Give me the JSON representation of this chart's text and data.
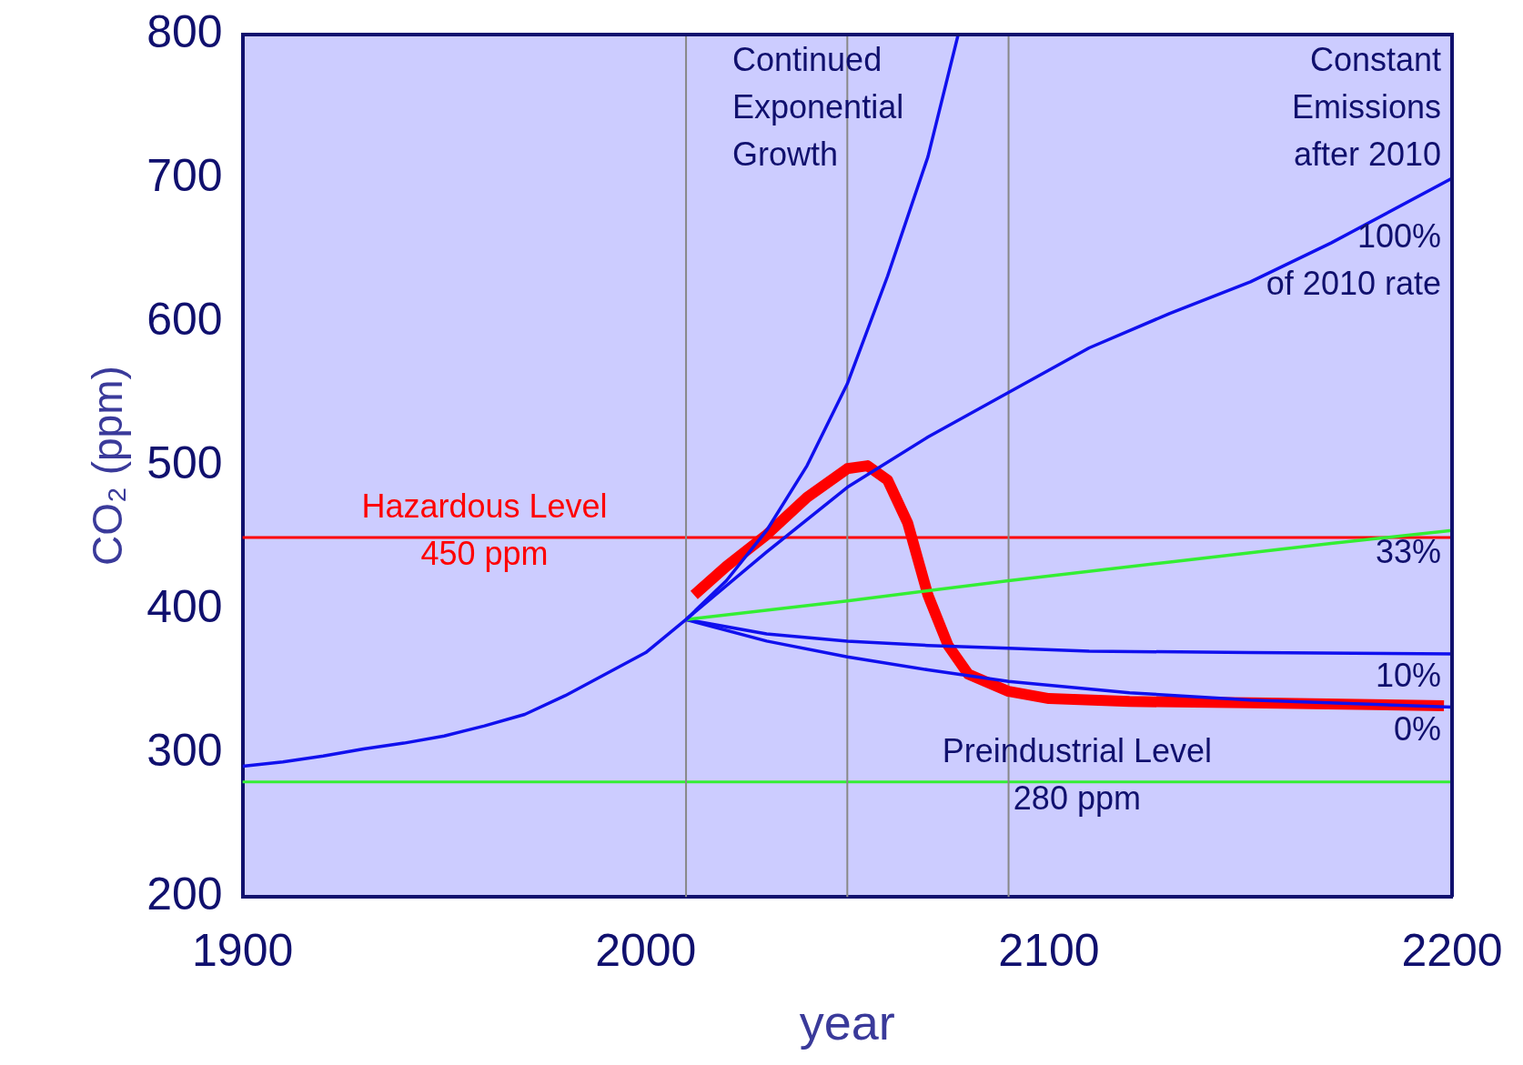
{
  "chart_data": {
    "type": "line",
    "xlabel": "year",
    "ylabel": "CO₂ (ppm)",
    "xlim": [
      1900,
      2200
    ],
    "xticks": [
      1900,
      2000,
      2100,
      2200
    ],
    "ylim": [
      200,
      800
    ],
    "yticks": [
      200,
      300,
      400,
      500,
      600,
      700,
      800
    ],
    "grid": false,
    "legend": false,
    "marker": "none",
    "line_style": "solid",
    "series": [
      {
        "name": "Continued\nExponential\nGrowth",
        "color": "#1010ee",
        "x": [
          1900,
          1910,
          1920,
          1930,
          1940,
          1950,
          1960,
          1970,
          1980,
          1990,
          2000,
          2010,
          2020,
          2030,
          2040,
          2050,
          2060,
          2070,
          2077.5
        ],
        "values": [
          291,
          294,
          298,
          303,
          307,
          312,
          319,
          327,
          340,
          355,
          370,
          393,
          420,
          455,
          500,
          557,
          632,
          715,
          800
        ]
      },
      {
        "name": "100%\nof 2010 rate",
        "color": "#1010ee",
        "x": [
          2010,
          2030,
          2050,
          2070,
          2090,
          2110,
          2130,
          2150,
          2170,
          2200
        ],
        "values": [
          393,
          440,
          485,
          520,
          551,
          582,
          606,
          628,
          655,
          700
        ]
      },
      {
        "name": "33%",
        "color": "#33ee33",
        "x": [
          2010,
          2050,
          2090,
          2130,
          2170,
          2200
        ],
        "values": [
          393,
          406,
          420,
          433,
          446,
          455
        ]
      },
      {
        "name": "10%",
        "color": "#1010ee",
        "x": [
          2010,
          2030,
          2050,
          2070,
          2090,
          2110,
          2150,
          2200
        ],
        "values": [
          393,
          383,
          378,
          375,
          373,
          371,
          370,
          369
        ]
      },
      {
        "name": "0%",
        "color": "#1010ee",
        "x": [
          2010,
          2030,
          2050,
          2070,
          2090,
          2120,
          2150,
          2200
        ],
        "values": [
          393,
          378,
          367,
          358,
          350,
          342,
          337,
          332
        ]
      },
      {
        "color": "#ff0000",
        "x": [
          2012,
          2020,
          2030,
          2040,
          2050,
          2055,
          2060,
          2065,
          2070,
          2075,
          2080,
          2090,
          2100,
          2120,
          2150,
          2198
        ],
        "values": [
          410,
          430,
          452,
          478,
          498,
          500,
          490,
          460,
          410,
          375,
          355,
          343,
          338,
          336,
          335,
          333
        ]
      }
    ],
    "ref_lines": [
      {
        "axis": "y",
        "value": 450,
        "color": "#ff0000",
        "label": "Hazardous Level\n450 ppm"
      },
      {
        "axis": "y",
        "value": 280,
        "color": "#33ee33",
        "label": "Preindustrial Level\n280 ppm"
      },
      {
        "axis": "x",
        "value": 2010,
        "color": "#888888"
      },
      {
        "axis": "x",
        "value": 2050,
        "color": "#888888"
      },
      {
        "axis": "x",
        "value": 2090,
        "color": "#888888"
      }
    ],
    "annotations": [
      "Constant\nEmissions\nafter 2010"
    ]
  }
}
